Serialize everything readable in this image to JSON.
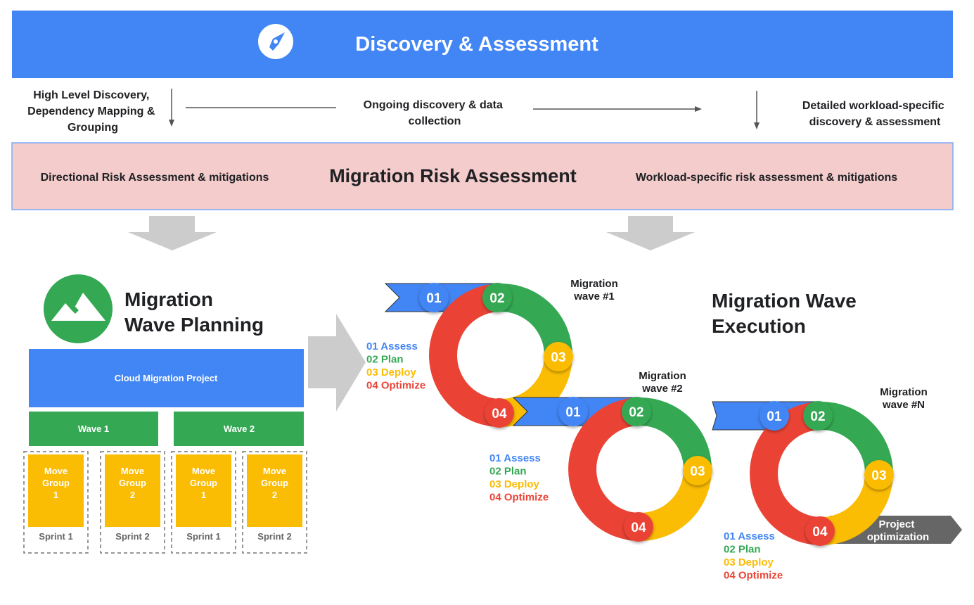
{
  "colors": {
    "blue": "#4285f4",
    "green": "#34a853",
    "yellow": "#fbbc04",
    "red": "#ea4335",
    "pink": "#f4cccc",
    "gray": "#cccccc",
    "dark_gray": "#666666",
    "text": "#202124"
  },
  "discovery": {
    "title": "Discovery & Assessment",
    "icon": "compass-icon",
    "left_note": [
      "High Level Discovery,",
      "Dependency Mapping &",
      "Grouping"
    ],
    "middle_note": [
      "Ongoing discovery & data",
      "collection"
    ],
    "right_note": [
      "Detailed workload-specific",
      "discovery & assessment"
    ]
  },
  "risk": {
    "title": "Migration Risk Assessment",
    "left": "Directional Risk Assessment & mitigations",
    "right": "Workload-specific risk assessment & mitigations"
  },
  "planning": {
    "icon": "mountain-icon",
    "title": [
      "Migration",
      "Wave Planning"
    ],
    "project": "Cloud Migration Project",
    "waves": [
      "Wave 1",
      "Wave 2"
    ],
    "groups": [
      {
        "label": [
          "Move",
          "Group",
          "1"
        ],
        "sprint": "Sprint 1"
      },
      {
        "label": [
          "Move",
          "Group",
          "2"
        ],
        "sprint": "Sprint 2"
      },
      {
        "label": [
          "Move",
          "Group",
          "1"
        ],
        "sprint": "Sprint 1"
      },
      {
        "label": [
          "Move",
          "Group",
          "2"
        ],
        "sprint": "Sprint 2"
      }
    ]
  },
  "execution": {
    "title": [
      "Migration Wave",
      "Execution"
    ],
    "steps": [
      "01",
      "02",
      "03",
      "04"
    ],
    "legend": [
      "01 Assess",
      "02 Plan",
      "03 Deploy",
      "04 Optimize"
    ],
    "waves": [
      {
        "label": [
          "Migration",
          "wave #1"
        ]
      },
      {
        "label": [
          "Migration",
          "wave #2"
        ]
      },
      {
        "label": [
          "Migration",
          "wave #N"
        ]
      }
    ],
    "final": [
      "Project",
      "optimization"
    ]
  }
}
